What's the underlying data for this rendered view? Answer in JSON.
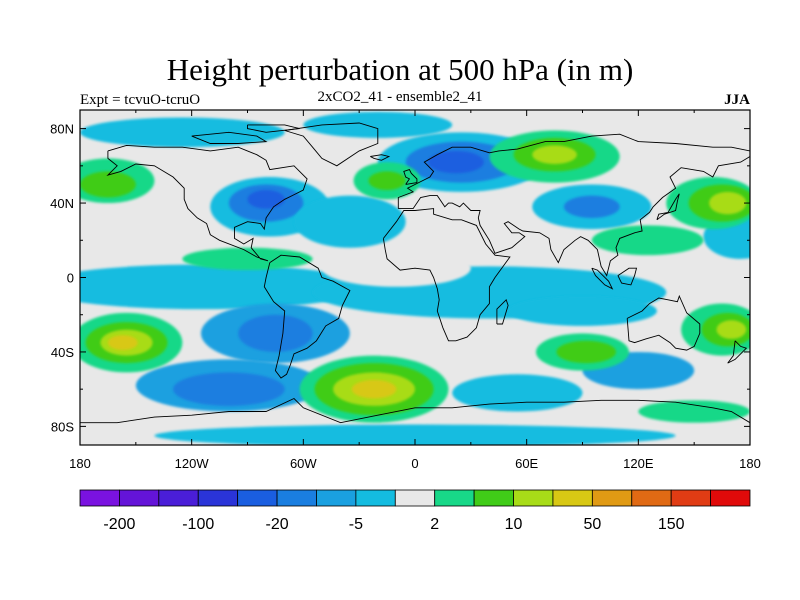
{
  "title": "Height perturbation at 500 hPa (in m)",
  "left_string": "Expt = tcvuO-tcruO",
  "center_string": "2xCO2_41 - ensemble2_41",
  "right_string": "JJA",
  "chart_data": {
    "type": "heatmap",
    "projection": "cylindrical-equidistant",
    "x_range": [
      -180,
      180
    ],
    "y_range": [
      -90,
      90
    ],
    "x_ticks": [
      {
        "value": -180,
        "label": "180"
      },
      {
        "value": -120,
        "label": "120W"
      },
      {
        "value": -60,
        "label": "60W"
      },
      {
        "value": 0,
        "label": "0"
      },
      {
        "value": 60,
        "label": "60E"
      },
      {
        "value": 120,
        "label": "120E"
      },
      {
        "value": 180,
        "label": "180"
      }
    ],
    "y_ticks": [
      {
        "value": 80,
        "label": "80N"
      },
      {
        "value": 40,
        "label": "40N"
      },
      {
        "value": 0,
        "label": "0"
      },
      {
        "value": -40,
        "label": "40S"
      },
      {
        "value": -80,
        "label": "80S"
      }
    ],
    "background_color": "#e8e8e8",
    "colorbar": {
      "colors": [
        "#7a12e0",
        "#6414d8",
        "#4a1ed8",
        "#2a34d8",
        "#1a5ee0",
        "#1a7ee0",
        "#1aa0e0",
        "#14bce0",
        "#e8e8e8",
        "#18d888",
        "#40cc18",
        "#a8dc18",
        "#d8c814",
        "#e09a14",
        "#e06a14",
        "#e03c14",
        "#e00a0a"
      ],
      "labels": [
        {
          "index": 1,
          "text": "-200"
        },
        {
          "index": 3,
          "text": "-100"
        },
        {
          "index": 5,
          "text": "-20"
        },
        {
          "index": 7,
          "text": "-5"
        },
        {
          "index": 9,
          "text": "2"
        },
        {
          "index": 11,
          "text": "10"
        },
        {
          "index": 13,
          "text": "50"
        },
        {
          "index": 15,
          "text": "150"
        }
      ]
    },
    "regions": [
      {
        "color": "#14bce0",
        "lon": -125,
        "lat": 78,
        "rx": 55,
        "ry": 8
      },
      {
        "color": "#14bce0",
        "lon": -20,
        "lat": 82,
        "rx": 40,
        "ry": 7
      },
      {
        "color": "#14bce0",
        "lon": 25,
        "lat": 62,
        "rx": 45,
        "ry": 16
      },
      {
        "color": "#1a7ee0",
        "lon": 25,
        "lat": 62,
        "rx": 30,
        "ry": 11
      },
      {
        "color": "#1a5ee0",
        "lon": 22,
        "lat": 62,
        "rx": 15,
        "ry": 6
      },
      {
        "color": "#14bce0",
        "lon": -78,
        "lat": 38,
        "rx": 32,
        "ry": 16
      },
      {
        "color": "#1a7ee0",
        "lon": -80,
        "lat": 40,
        "rx": 20,
        "ry": 10
      },
      {
        "color": "#1a5ee0",
        "lon": -80,
        "lat": 42,
        "rx": 10,
        "ry": 5
      },
      {
        "color": "#14bce0",
        "lon": -35,
        "lat": 30,
        "rx": 30,
        "ry": 14
      },
      {
        "color": "#14bce0",
        "lon": 95,
        "lat": 38,
        "rx": 32,
        "ry": 12
      },
      {
        "color": "#1a7ee0",
        "lon": 95,
        "lat": 38,
        "rx": 15,
        "ry": 6
      },
      {
        "color": "#14bce0",
        "lon": 175,
        "lat": 22,
        "rx": 20,
        "ry": 12
      },
      {
        "color": "#14bce0",
        "lon": -115,
        "lat": -5,
        "rx": 90,
        "ry": 12
      },
      {
        "color": "#14bce0",
        "lon": 40,
        "lat": -8,
        "rx": 95,
        "ry": 14
      },
      {
        "color": "#1aa0e0",
        "lon": -75,
        "lat": -30,
        "rx": 40,
        "ry": 16
      },
      {
        "color": "#1a7ee0",
        "lon": -75,
        "lat": -30,
        "rx": 20,
        "ry": 10
      },
      {
        "color": "#14bce0",
        "lon": 90,
        "lat": -18,
        "rx": 40,
        "ry": 8
      },
      {
        "color": "#1aa0e0",
        "lon": 120,
        "lat": -50,
        "rx": 30,
        "ry": 10
      },
      {
        "color": "#14bce0",
        "lon": 55,
        "lat": -62,
        "rx": 35,
        "ry": 10
      },
      {
        "color": "#1aa0e0",
        "lon": -100,
        "lat": -58,
        "rx": 50,
        "ry": 14
      },
      {
        "color": "#1a7ee0",
        "lon": -100,
        "lat": -60,
        "rx": 30,
        "ry": 9
      },
      {
        "color": "#14bce0",
        "lon": 0,
        "lat": -85,
        "rx": 140,
        "ry": 6
      },
      {
        "color": "#18d888",
        "lon": -165,
        "lat": 52,
        "rx": 25,
        "ry": 12
      },
      {
        "color": "#40cc18",
        "lon": -165,
        "lat": 50,
        "rx": 15,
        "ry": 7
      },
      {
        "color": "#18d888",
        "lon": -15,
        "lat": 52,
        "rx": 18,
        "ry": 10
      },
      {
        "color": "#40cc18",
        "lon": -15,
        "lat": 52,
        "rx": 10,
        "ry": 5
      },
      {
        "color": "#18d888",
        "lon": 75,
        "lat": 65,
        "rx": 35,
        "ry": 14
      },
      {
        "color": "#40cc18",
        "lon": 75,
        "lat": 66,
        "rx": 22,
        "ry": 9
      },
      {
        "color": "#a8dc18",
        "lon": 75,
        "lat": 66,
        "rx": 12,
        "ry": 5
      },
      {
        "color": "#18d888",
        "lon": 160,
        "lat": 40,
        "rx": 25,
        "ry": 14
      },
      {
        "color": "#40cc18",
        "lon": 165,
        "lat": 40,
        "rx": 18,
        "ry": 10
      },
      {
        "color": "#a8dc18",
        "lon": 168,
        "lat": 40,
        "rx": 10,
        "ry": 6
      },
      {
        "color": "#18d888",
        "lon": 125,
        "lat": 20,
        "rx": 30,
        "ry": 8
      },
      {
        "color": "#18d888",
        "lon": -90,
        "lat": 10,
        "rx": 35,
        "ry": 6
      },
      {
        "color": "#18d888",
        "lon": -155,
        "lat": -35,
        "rx": 30,
        "ry": 16
      },
      {
        "color": "#40cc18",
        "lon": -155,
        "lat": -35,
        "rx": 22,
        "ry": 11
      },
      {
        "color": "#a8dc18",
        "lon": -155,
        "lat": -35,
        "rx": 14,
        "ry": 7
      },
      {
        "color": "#d8c814",
        "lon": -157,
        "lat": -35,
        "rx": 8,
        "ry": 4
      },
      {
        "color": "#18d888",
        "lon": 165,
        "lat": -28,
        "rx": 22,
        "ry": 14
      },
      {
        "color": "#40cc18",
        "lon": 168,
        "lat": -28,
        "rx": 14,
        "ry": 9
      },
      {
        "color": "#a8dc18",
        "lon": 170,
        "lat": -28,
        "rx": 8,
        "ry": 5
      },
      {
        "color": "#18d888",
        "lon": -22,
        "lat": -60,
        "rx": 40,
        "ry": 18
      },
      {
        "color": "#40cc18",
        "lon": -22,
        "lat": -60,
        "rx": 32,
        "ry": 14
      },
      {
        "color": "#a8dc18",
        "lon": -22,
        "lat": -60,
        "rx": 22,
        "ry": 9
      },
      {
        "color": "#d8c814",
        "lon": -22,
        "lat": -60,
        "rx": 12,
        "ry": 5
      },
      {
        "color": "#18d888",
        "lon": 90,
        "lat": -40,
        "rx": 25,
        "ry": 10
      },
      {
        "color": "#40cc18",
        "lon": 92,
        "lat": -40,
        "rx": 16,
        "ry": 6
      },
      {
        "color": "#18d888",
        "lon": 150,
        "lat": -72,
        "rx": 30,
        "ry": 6
      },
      {
        "color": "#e8e8e8",
        "lon": -10,
        "lat": 5,
        "rx": 40,
        "ry": 10
      }
    ]
  }
}
